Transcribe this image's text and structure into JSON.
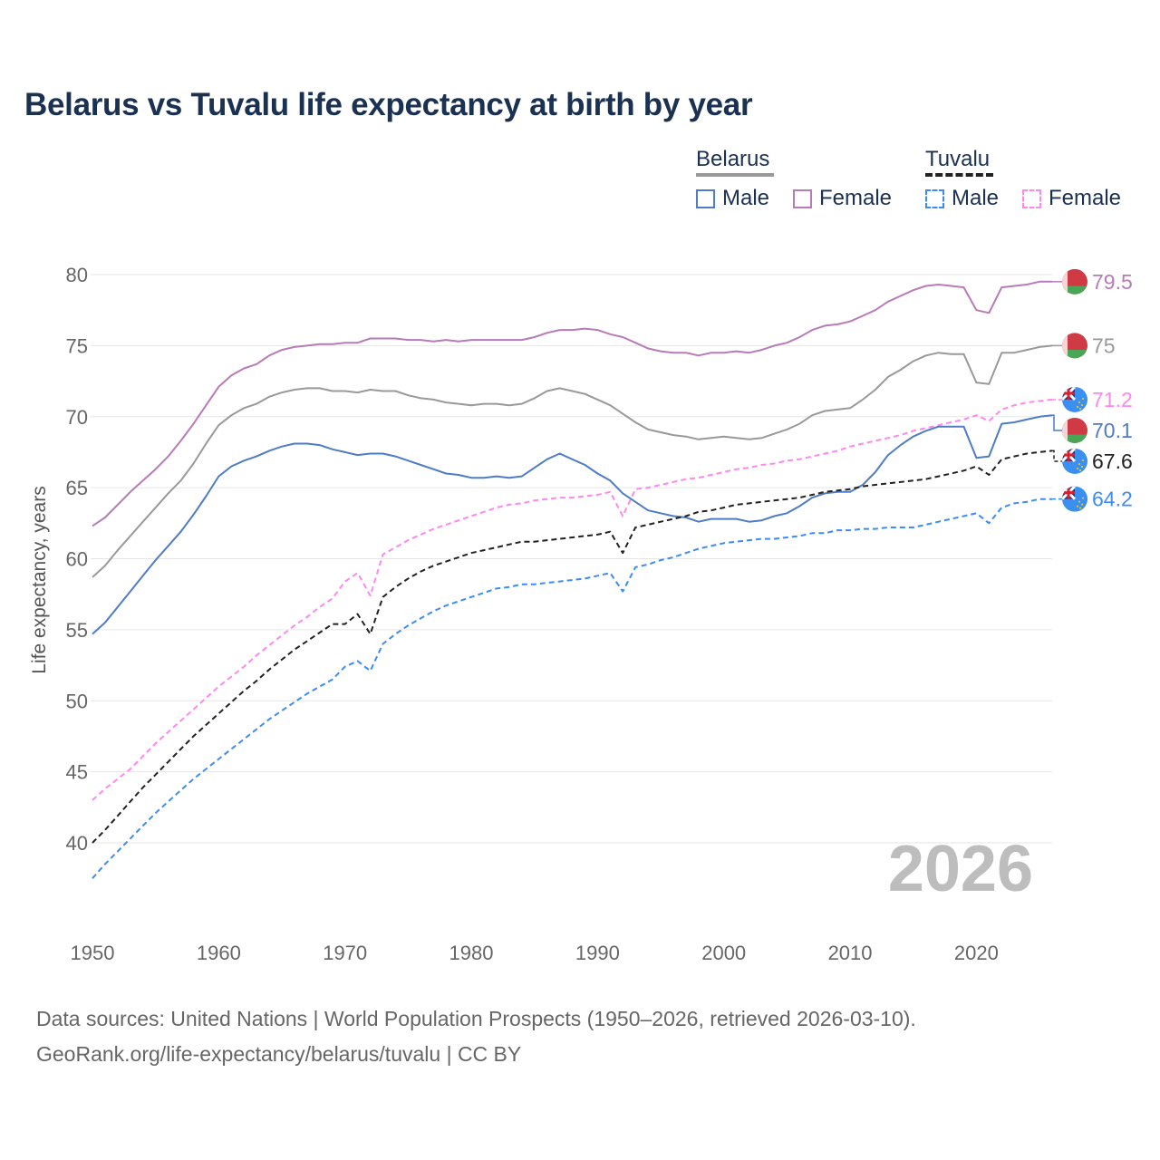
{
  "title": "Belarus vs Tuvalu life expectancy at birth by year",
  "legend": {
    "belarus": {
      "label": "Belarus",
      "male": "Male",
      "female": "Female"
    },
    "tuvalu": {
      "label": "Tuvalu",
      "male": "Male",
      "female": "Female"
    }
  },
  "watermark_year": "2026",
  "footer": {
    "line1": "Data sources: United Nations | World Population Prospects (1950–2026, retrieved 2026-03-10).",
    "line2": "GeoRank.org/life-expectancy/belarus/tuvalu | CC BY"
  },
  "chart_data": {
    "type": "line",
    "title": "Belarus vs Tuvalu life expectancy at birth by year",
    "xlabel": "",
    "ylabel": "Life expectancy, years",
    "xlim": [
      1950,
      2026
    ],
    "ylim": [
      35,
      80
    ],
    "x_ticks": [
      "1950",
      "1960",
      "1970",
      "1980",
      "1990",
      "2000",
      "2010",
      "2020"
    ],
    "y_ticks": [
      "40",
      "45",
      "50",
      "55",
      "60",
      "65",
      "70",
      "75",
      "80"
    ],
    "grid": true,
    "legend_position": "top-right",
    "x_start": 1950,
    "series": [
      {
        "name": "Belarus Female",
        "country": "Belarus",
        "color": "#b87bb7",
        "dashed": false,
        "end_label": "79.5",
        "flag": "belarus",
        "values": [
          62.3,
          62.9,
          63.8,
          64.7,
          65.5,
          66.3,
          67.2,
          68.3,
          69.5,
          70.8,
          72.1,
          72.9,
          73.4,
          73.7,
          74.3,
          74.7,
          74.9,
          75.0,
          75.1,
          75.1,
          75.2,
          75.2,
          75.5,
          75.5,
          75.5,
          75.4,
          75.4,
          75.3,
          75.4,
          75.3,
          75.4,
          75.4,
          75.4,
          75.4,
          75.4,
          75.6,
          75.9,
          76.1,
          76.1,
          76.2,
          76.1,
          75.8,
          75.6,
          75.2,
          74.8,
          74.6,
          74.5,
          74.5,
          74.3,
          74.5,
          74.5,
          74.6,
          74.5,
          74.7,
          75.0,
          75.2,
          75.6,
          76.1,
          76.4,
          76.5,
          76.7,
          77.1,
          77.5,
          78.1,
          78.5,
          78.9,
          79.2,
          79.3,
          79.2,
          79.1,
          77.5,
          77.3,
          79.1,
          79.2,
          79.3,
          79.5,
          79.5
        ]
      },
      {
        "name": "Belarus Total",
        "country": "Belarus",
        "color": "#999999",
        "dashed": false,
        "end_label": "75",
        "flag": "belarus",
        "values": [
          58.7,
          59.5,
          60.6,
          61.6,
          62.6,
          63.6,
          64.6,
          65.5,
          66.7,
          68.1,
          69.4,
          70.1,
          70.6,
          70.9,
          71.4,
          71.7,
          71.9,
          72.0,
          72.0,
          71.8,
          71.8,
          71.7,
          71.9,
          71.8,
          71.8,
          71.5,
          71.3,
          71.2,
          71.0,
          70.9,
          70.8,
          70.9,
          70.9,
          70.8,
          70.9,
          71.3,
          71.8,
          72.0,
          71.8,
          71.6,
          71.2,
          70.8,
          70.2,
          69.6,
          69.1,
          68.9,
          68.7,
          68.6,
          68.4,
          68.5,
          68.6,
          68.5,
          68.4,
          68.5,
          68.8,
          69.1,
          69.5,
          70.1,
          70.4,
          70.5,
          70.6,
          71.2,
          71.9,
          72.8,
          73.3,
          73.9,
          74.3,
          74.5,
          74.4,
          74.4,
          72.4,
          72.3,
          74.5,
          74.5,
          74.7,
          74.9,
          75.0
        ]
      },
      {
        "name": "Tuvalu Female",
        "country": "Tuvalu",
        "color": "#ff88ee",
        "dashed": true,
        "end_label": "71.2",
        "flag": "tuvalu",
        "values": [
          43.0,
          43.8,
          44.5,
          45.2,
          46.1,
          47.0,
          47.8,
          48.6,
          49.4,
          50.2,
          51.0,
          51.7,
          52.4,
          53.2,
          53.9,
          54.6,
          55.3,
          55.9,
          56.6,
          57.2,
          58.4,
          59.0,
          57.4,
          60.3,
          60.8,
          61.3,
          61.7,
          62.1,
          62.4,
          62.7,
          63.0,
          63.3,
          63.6,
          63.8,
          63.9,
          64.1,
          64.2,
          64.3,
          64.3,
          64.4,
          64.5,
          64.7,
          63.0,
          64.9,
          65.0,
          65.2,
          65.4,
          65.6,
          65.7,
          65.9,
          66.1,
          66.3,
          66.4,
          66.6,
          66.7,
          66.9,
          67.0,
          67.2,
          67.4,
          67.6,
          67.9,
          68.1,
          68.3,
          68.5,
          68.7,
          69.0,
          69.2,
          69.4,
          69.6,
          69.8,
          70.1,
          69.7,
          70.5,
          70.8,
          71.0,
          71.1,
          71.2
        ]
      },
      {
        "name": "Belarus Male",
        "country": "Belarus",
        "color": "#4e7cc7",
        "dashed": false,
        "end_label": "70.1",
        "flag": "belarus",
        "values": [
          54.7,
          55.5,
          56.6,
          57.7,
          58.8,
          59.9,
          60.9,
          61.9,
          63.1,
          64.4,
          65.8,
          66.5,
          66.9,
          67.2,
          67.6,
          67.9,
          68.1,
          68.1,
          68.0,
          67.7,
          67.5,
          67.3,
          67.4,
          67.4,
          67.2,
          66.9,
          66.6,
          66.3,
          66.0,
          65.9,
          65.7,
          65.7,
          65.8,
          65.7,
          65.8,
          66.4,
          67.0,
          67.4,
          67.0,
          66.6,
          66.0,
          65.5,
          64.6,
          64.0,
          63.4,
          63.2,
          63.0,
          62.9,
          62.6,
          62.8,
          62.8,
          62.8,
          62.6,
          62.7,
          63.0,
          63.2,
          63.7,
          64.3,
          64.6,
          64.7,
          64.7,
          65.2,
          66.1,
          67.3,
          68.0,
          68.6,
          69.0,
          69.3,
          69.3,
          69.3,
          67.1,
          67.2,
          69.5,
          69.6,
          69.8,
          70.0,
          70.1
        ]
      },
      {
        "name": "Tuvalu Total",
        "country": "Tuvalu",
        "color": "#222222",
        "dashed": true,
        "end_label": "67.6",
        "flag": "tuvalu",
        "values": [
          40.0,
          40.9,
          41.9,
          42.9,
          43.9,
          44.8,
          45.7,
          46.6,
          47.5,
          48.3,
          49.1,
          49.9,
          50.7,
          51.4,
          52.2,
          52.9,
          53.6,
          54.2,
          54.8,
          55.4,
          55.4,
          56.1,
          54.7,
          57.3,
          58.0,
          58.6,
          59.1,
          59.5,
          59.8,
          60.1,
          60.4,
          60.6,
          60.8,
          61.0,
          61.2,
          61.2,
          61.3,
          61.4,
          61.5,
          61.6,
          61.7,
          61.9,
          60.4,
          62.2,
          62.4,
          62.6,
          62.8,
          63.0,
          63.3,
          63.4,
          63.6,
          63.8,
          63.9,
          64.0,
          64.1,
          64.2,
          64.3,
          64.5,
          64.7,
          64.8,
          64.9,
          65.1,
          65.2,
          65.3,
          65.4,
          65.5,
          65.6,
          65.8,
          66.0,
          66.2,
          66.5,
          65.9,
          67.0,
          67.2,
          67.4,
          67.5,
          67.6
        ]
      },
      {
        "name": "Tuvalu Male",
        "country": "Tuvalu",
        "color": "#3d8cf5",
        "dashed": true,
        "end_label": "64.2",
        "flag": "tuvalu",
        "values": [
          37.5,
          38.5,
          39.4,
          40.3,
          41.2,
          42.1,
          42.9,
          43.7,
          44.5,
          45.2,
          45.9,
          46.6,
          47.3,
          48.0,
          48.7,
          49.3,
          49.9,
          50.5,
          51.0,
          51.5,
          52.4,
          52.8,
          52.1,
          54.0,
          54.7,
          55.3,
          55.8,
          56.3,
          56.7,
          57.0,
          57.3,
          57.6,
          57.9,
          58.0,
          58.2,
          58.2,
          58.3,
          58.4,
          58.5,
          58.6,
          58.8,
          59.0,
          57.7,
          59.4,
          59.6,
          59.9,
          60.1,
          60.4,
          60.7,
          60.9,
          61.1,
          61.2,
          61.3,
          61.4,
          61.4,
          61.5,
          61.6,
          61.8,
          61.8,
          62.0,
          62.0,
          62.1,
          62.1,
          62.2,
          62.2,
          62.2,
          62.4,
          62.6,
          62.8,
          63.0,
          63.2,
          62.5,
          63.6,
          63.9,
          64.0,
          64.2,
          64.2
        ]
      }
    ]
  }
}
